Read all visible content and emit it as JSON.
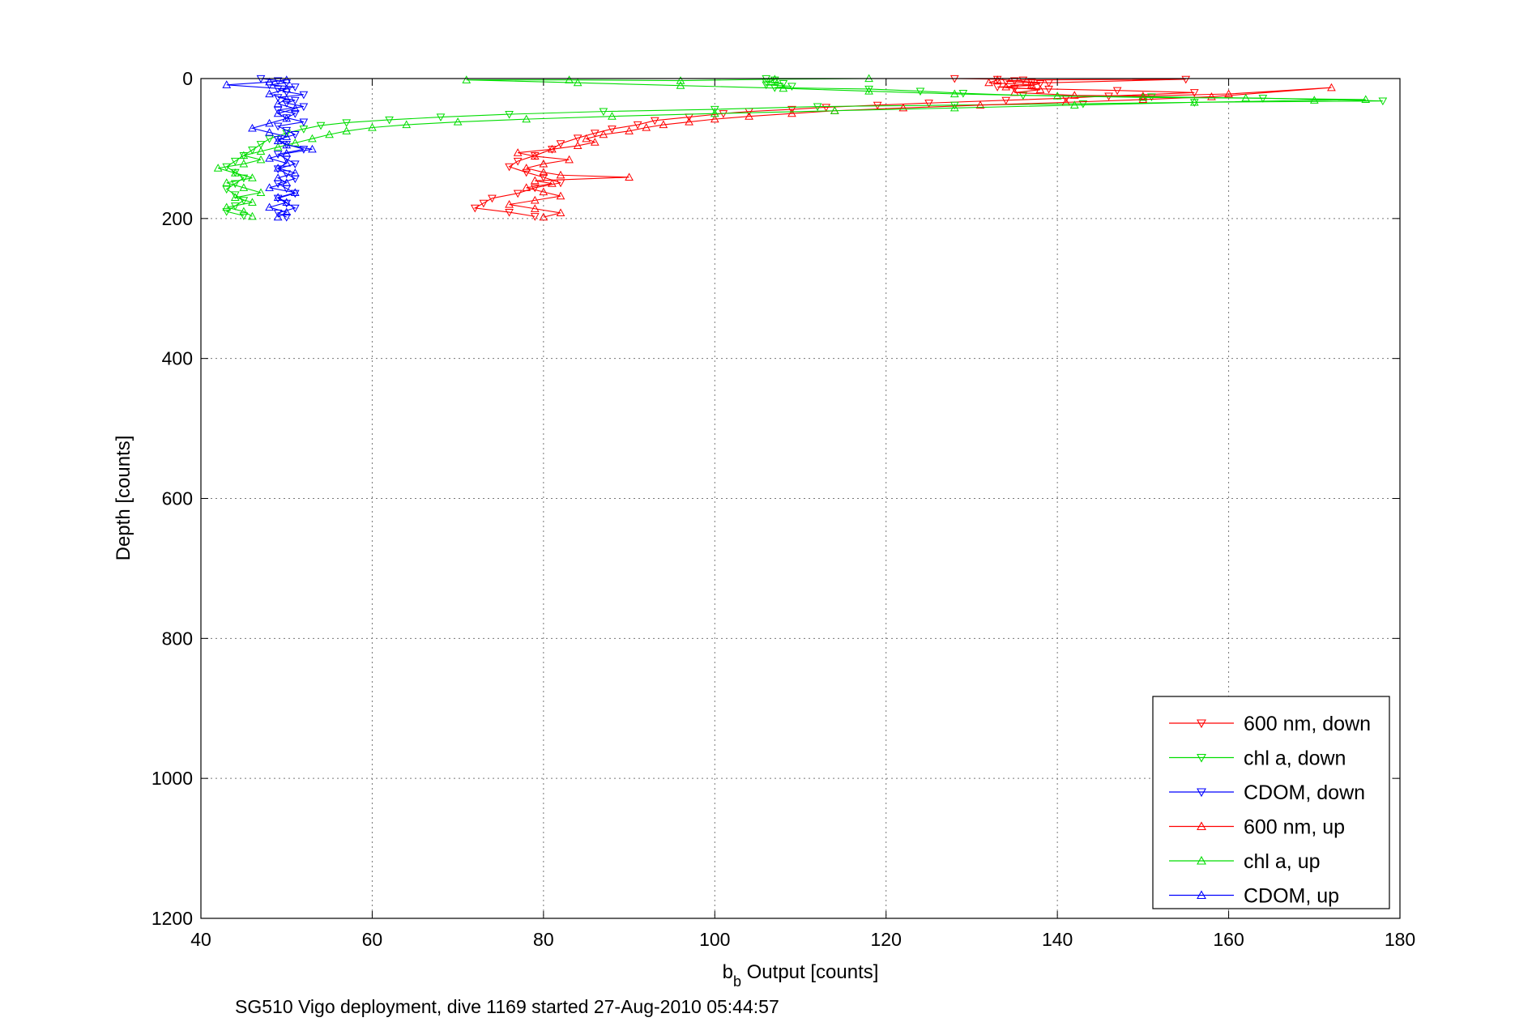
{
  "chart_data": {
    "type": "line",
    "title": "",
    "xlabel": {
      "main": "b",
      "sub": "b",
      "rest": " Output [counts]"
    },
    "ylabel": "Depth [counts]",
    "caption": "SG510 Vigo deployment, dive 1169 started 27-Aug-2010 05:44:57",
    "xlim": [
      40,
      180
    ],
    "ylim": [
      0,
      1200
    ],
    "y_reversed": true,
    "grid": true,
    "legend_position": "bottom-right",
    "x_ticks": [
      "40",
      "60",
      "80",
      "100",
      "120",
      "140",
      "160",
      "180"
    ],
    "y_ticks": [
      "0",
      "200",
      "400",
      "600",
      "800",
      "1000",
      "1200"
    ],
    "series": [
      {
        "name": "600 nm, down",
        "color": "#ff0000",
        "marker": "triangle-down",
        "points": [
          [
            128,
            0
          ],
          [
            133,
            1
          ],
          [
            135,
            3
          ],
          [
            137,
            5
          ],
          [
            139,
            6
          ],
          [
            155,
            1
          ],
          [
            136,
            2
          ],
          [
            134,
            4
          ],
          [
            138,
            7
          ],
          [
            137,
            10
          ],
          [
            133,
            12
          ],
          [
            135,
            14
          ],
          [
            139,
            15
          ],
          [
            147,
            17
          ],
          [
            156,
            20
          ],
          [
            146,
            25
          ],
          [
            141,
            28
          ],
          [
            134,
            31
          ],
          [
            125,
            35
          ],
          [
            119,
            38
          ],
          [
            113,
            41
          ],
          [
            109,
            44
          ],
          [
            104,
            47
          ],
          [
            101,
            50
          ],
          [
            97,
            55
          ],
          [
            93,
            60
          ],
          [
            91,
            66
          ],
          [
            88,
            72
          ],
          [
            86,
            78
          ],
          [
            84,
            85
          ],
          [
            82,
            93
          ],
          [
            81,
            101
          ],
          [
            79,
            110
          ],
          [
            77,
            118
          ],
          [
            76,
            126
          ],
          [
            78,
            134
          ],
          [
            80,
            141
          ],
          [
            82,
            149
          ],
          [
            79,
            156
          ],
          [
            77,
            164
          ],
          [
            74,
            171
          ],
          [
            73,
            178
          ],
          [
            72,
            185
          ],
          [
            76,
            191
          ],
          [
            79,
            197
          ]
        ]
      },
      {
        "name": "chl a, down",
        "color": "#00dd00",
        "marker": "triangle-down",
        "points": [
          [
            106,
            0
          ],
          [
            107,
            2
          ],
          [
            106,
            5
          ],
          [
            108,
            7
          ],
          [
            106,
            9
          ],
          [
            109,
            11
          ],
          [
            107,
            13
          ],
          [
            118,
            15
          ],
          [
            124,
            18
          ],
          [
            129,
            21
          ],
          [
            136,
            24
          ],
          [
            151,
            26
          ],
          [
            164,
            28
          ],
          [
            178,
            32
          ],
          [
            156,
            34
          ],
          [
            143,
            36
          ],
          [
            128,
            38
          ],
          [
            112,
            40
          ],
          [
            100,
            44
          ],
          [
            87,
            47
          ],
          [
            76,
            51
          ],
          [
            68,
            55
          ],
          [
            62,
            59
          ],
          [
            57,
            63
          ],
          [
            54,
            67
          ],
          [
            52,
            72
          ],
          [
            50,
            78
          ],
          [
            48,
            86
          ],
          [
            47,
            94
          ],
          [
            46,
            102
          ],
          [
            45,
            110
          ],
          [
            44,
            118
          ],
          [
            43,
            126
          ],
          [
            44,
            134
          ],
          [
            45,
            142
          ],
          [
            44,
            150
          ],
          [
            43,
            158
          ],
          [
            44,
            166
          ],
          [
            45,
            174
          ],
          [
            44,
            182
          ],
          [
            43,
            190
          ],
          [
            45,
            196
          ]
        ]
      },
      {
        "name": "CDOM, down",
        "color": "#0000ff",
        "marker": "triangle-down",
        "points": [
          [
            47,
            0
          ],
          [
            49,
            3
          ],
          [
            50,
            6
          ],
          [
            48,
            9
          ],
          [
            51,
            12
          ],
          [
            49,
            15
          ],
          [
            50,
            19
          ],
          [
            52,
            23
          ],
          [
            49,
            27
          ],
          [
            51,
            31
          ],
          [
            50,
            35
          ],
          [
            52,
            40
          ],
          [
            49,
            45
          ],
          [
            51,
            50
          ],
          [
            50,
            56
          ],
          [
            52,
            62
          ],
          [
            49,
            68
          ],
          [
            50,
            74
          ],
          [
            51,
            80
          ],
          [
            49,
            87
          ],
          [
            50,
            94
          ],
          [
            52,
            101
          ],
          [
            49,
            108
          ],
          [
            50,
            115
          ],
          [
            51,
            122
          ],
          [
            49,
            129
          ],
          [
            50,
            136
          ],
          [
            51,
            143
          ],
          [
            49,
            150
          ],
          [
            50,
            157
          ],
          [
            51,
            164
          ],
          [
            49,
            171
          ],
          [
            50,
            178
          ],
          [
            51,
            185
          ],
          [
            49,
            192
          ],
          [
            50,
            198
          ]
        ]
      },
      {
        "name": "600 nm, up",
        "color": "#ff0000",
        "marker": "triangle-up",
        "points": [
          [
            80,
            198
          ],
          [
            82,
            192
          ],
          [
            79,
            186
          ],
          [
            76,
            180
          ],
          [
            79,
            174
          ],
          [
            82,
            168
          ],
          [
            80,
            162
          ],
          [
            78,
            156
          ],
          [
            81,
            150
          ],
          [
            79,
            146
          ],
          [
            90,
            141
          ],
          [
            82,
            138
          ],
          [
            80,
            134
          ],
          [
            78,
            128
          ],
          [
            80,
            122
          ],
          [
            83,
            116
          ],
          [
            79,
            111
          ],
          [
            77,
            106
          ],
          [
            81,
            101
          ],
          [
            84,
            96
          ],
          [
            86,
            91
          ],
          [
            85,
            86
          ],
          [
            87,
            80
          ],
          [
            90,
            75
          ],
          [
            92,
            70
          ],
          [
            94,
            66
          ],
          [
            97,
            62
          ],
          [
            100,
            58
          ],
          [
            104,
            54
          ],
          [
            109,
            50
          ],
          [
            114,
            46
          ],
          [
            122,
            42
          ],
          [
            131,
            38
          ],
          [
            141,
            34
          ],
          [
            150,
            30
          ],
          [
            158,
            26
          ],
          [
            172,
            13
          ],
          [
            160,
            22
          ],
          [
            150,
            25
          ],
          [
            142,
            24
          ],
          [
            135,
            20
          ],
          [
            138,
            16
          ],
          [
            134,
            12
          ],
          [
            137,
            9
          ],
          [
            132,
            6
          ],
          [
            133,
            2
          ]
        ]
      },
      {
        "name": "chl a, up",
        "color": "#00dd00",
        "marker": "triangle-up",
        "points": [
          [
            46,
            197
          ],
          [
            45,
            190
          ],
          [
            43,
            184
          ],
          [
            46,
            177
          ],
          [
            44,
            170
          ],
          [
            47,
            163
          ],
          [
            45,
            156
          ],
          [
            43,
            149
          ],
          [
            46,
            142
          ],
          [
            44,
            135
          ],
          [
            42,
            128
          ],
          [
            45,
            122
          ],
          [
            47,
            116
          ],
          [
            45,
            110
          ],
          [
            47,
            104
          ],
          [
            49,
            98
          ],
          [
            51,
            92
          ],
          [
            53,
            86
          ],
          [
            55,
            80
          ],
          [
            57,
            75
          ],
          [
            60,
            70
          ],
          [
            64,
            66
          ],
          [
            70,
            62
          ],
          [
            78,
            58
          ],
          [
            88,
            54
          ],
          [
            100,
            50
          ],
          [
            114,
            46
          ],
          [
            128,
            42
          ],
          [
            142,
            38
          ],
          [
            156,
            34
          ],
          [
            170,
            31
          ],
          [
            176,
            30
          ],
          [
            162,
            28
          ],
          [
            150,
            27
          ],
          [
            140,
            25
          ],
          [
            128,
            22
          ],
          [
            118,
            18
          ],
          [
            108,
            14
          ],
          [
            96,
            10
          ],
          [
            84,
            6
          ],
          [
            71,
            2
          ],
          [
            83,
            2
          ],
          [
            96,
            3
          ],
          [
            107,
            1
          ],
          [
            118,
            0
          ]
        ]
      },
      {
        "name": "CDOM, up",
        "color": "#0000ff",
        "marker": "triangle-up",
        "points": [
          [
            49,
            198
          ],
          [
            50,
            191
          ],
          [
            48,
            184
          ],
          [
            50,
            177
          ],
          [
            49,
            170
          ],
          [
            51,
            163
          ],
          [
            48,
            156
          ],
          [
            50,
            149
          ],
          [
            49,
            142
          ],
          [
            51,
            135
          ],
          [
            49,
            128
          ],
          [
            50,
            121
          ],
          [
            48,
            114
          ],
          [
            50,
            107
          ],
          [
            53,
            101
          ],
          [
            50,
            95
          ],
          [
            49,
            89
          ],
          [
            50,
            83
          ],
          [
            48,
            77
          ],
          [
            46,
            71
          ],
          [
            48,
            64
          ],
          [
            50,
            57
          ],
          [
            49,
            50
          ],
          [
            51,
            43
          ],
          [
            49,
            36
          ],
          [
            50,
            29
          ],
          [
            48,
            22
          ],
          [
            50,
            15
          ],
          [
            43,
            9
          ],
          [
            48,
            5
          ],
          [
            50,
            2
          ]
        ]
      }
    ]
  }
}
